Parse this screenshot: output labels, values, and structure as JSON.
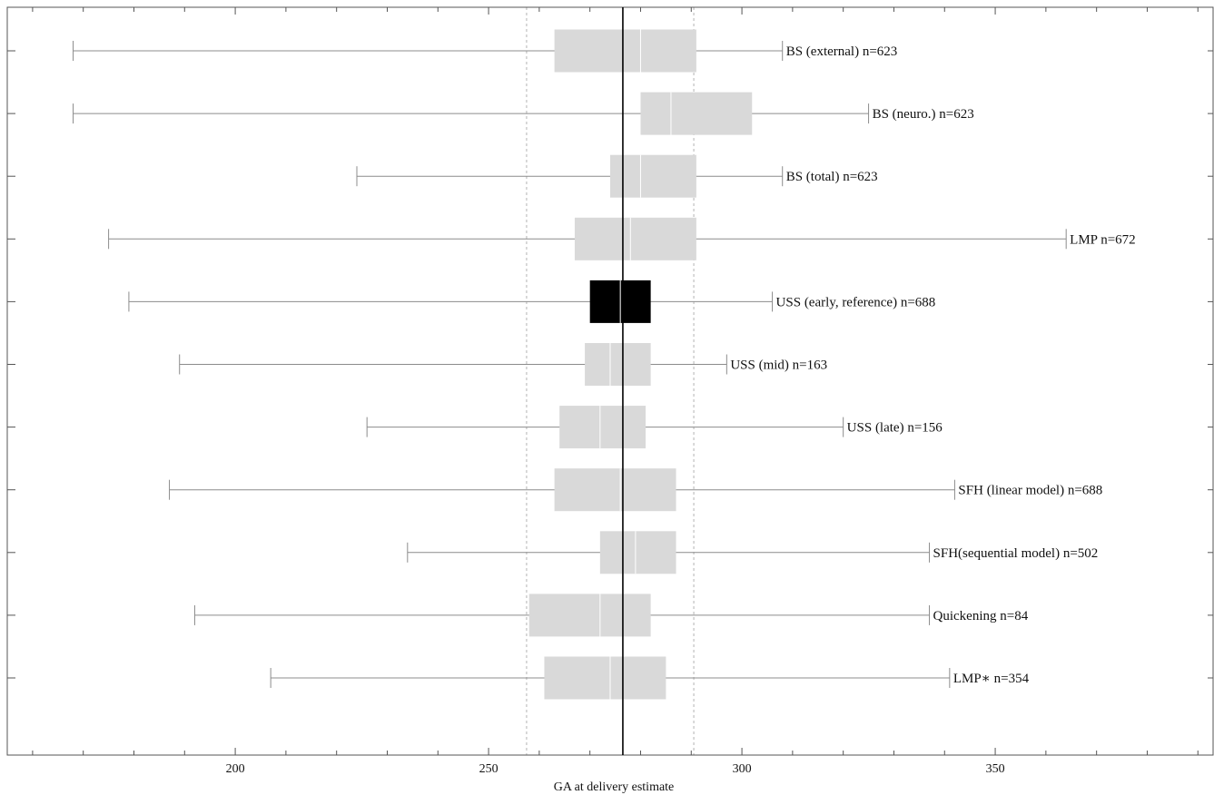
{
  "chart_data": {
    "type": "boxplot",
    "title": "",
    "xlabel": "GA at delivery estimate",
    "ylabel": "",
    "xlim": [
      155,
      393
    ],
    "xticks": [
      200,
      250,
      300,
      350
    ],
    "grid": false,
    "reference": {
      "median": 276.5,
      "lower": 257.5,
      "upper": 290.5
    },
    "series": [
      {
        "label": "BS (external) n=623",
        "min": 168,
        "q1": 263,
        "median": 280,
        "q3": 291,
        "max": 308,
        "highlight": false
      },
      {
        "label": "BS (neuro.) n=623",
        "min": 168,
        "q1": 280,
        "median": 286,
        "q3": 302,
        "max": 325,
        "highlight": false
      },
      {
        "label": "BS (total) n=623",
        "min": 224,
        "q1": 274,
        "median": 280,
        "q3": 291,
        "max": 308,
        "highlight": false
      },
      {
        "label": "LMP n=672",
        "min": 175,
        "q1": 267,
        "median": 278,
        "q3": 291,
        "max": 364,
        "highlight": false
      },
      {
        "label": "USS (early, reference) n=688",
        "min": 179,
        "q1": 270,
        "median": 276,
        "q3": 282,
        "max": 306,
        "highlight": true
      },
      {
        "label": "USS (mid) n=163",
        "min": 189,
        "q1": 269,
        "median": 274,
        "q3": 282,
        "max": 297,
        "highlight": false
      },
      {
        "label": "USS (late) n=156",
        "min": 226,
        "q1": 264,
        "median": 272,
        "q3": 281,
        "max": 320,
        "highlight": false
      },
      {
        "label": "SFH (linear model) n=688",
        "min": 187,
        "q1": 263,
        "median": 276,
        "q3": 287,
        "max": 342,
        "highlight": false
      },
      {
        "label": "SFH(sequential model) n=502",
        "min": 234,
        "q1": 272,
        "median": 279,
        "q3": 287,
        "max": 337,
        "highlight": false
      },
      {
        "label": "Quickening n=84",
        "min": 192,
        "q1": 258,
        "median": 272,
        "q3": 282,
        "max": 337,
        "highlight": false
      },
      {
        "label": "LMP∗ n=354",
        "min": 207,
        "q1": 261,
        "median": 274,
        "q3": 285,
        "max": 341,
        "highlight": false
      }
    ],
    "colors": {
      "box": "#d9d9d9",
      "box_highlight": "#000000",
      "median_line": "#ffffff",
      "whisker": "#8c8c8c",
      "reference_line": "#000000",
      "reference_dashed": "#b3b3b3",
      "frame": "#555555"
    }
  }
}
